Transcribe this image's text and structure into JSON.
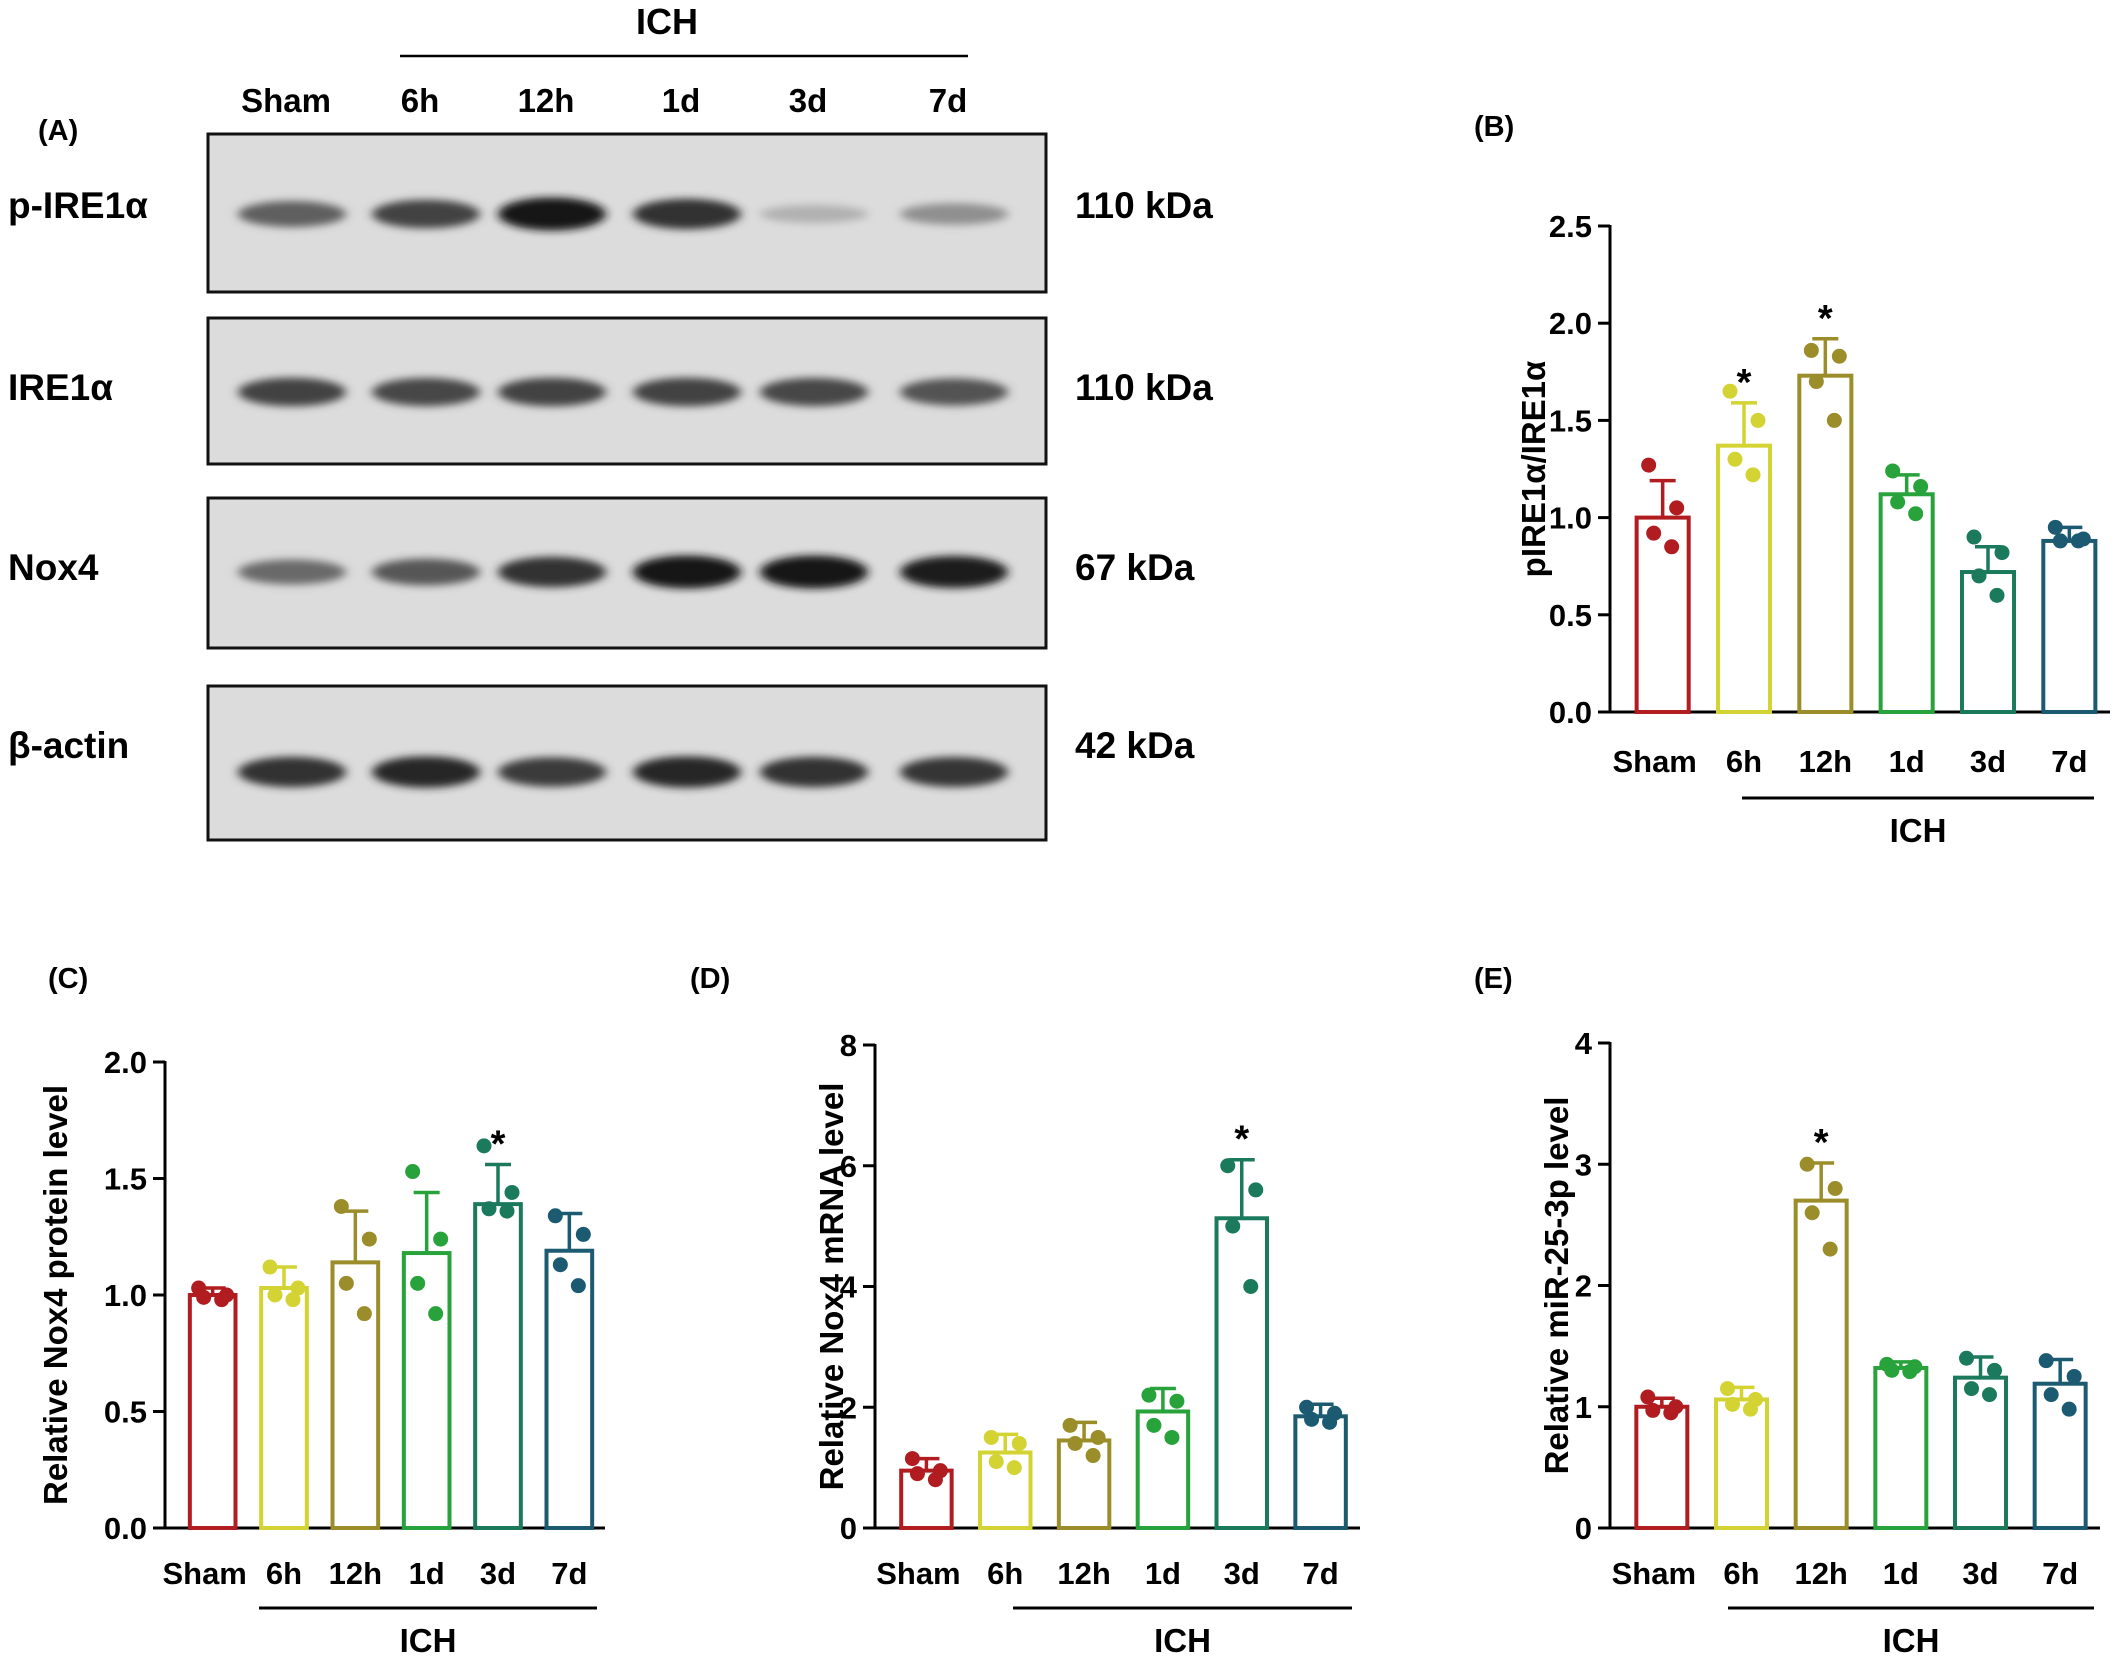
{
  "panel_a": {
    "label": "(A)",
    "group_label": "ICH",
    "lanes": [
      "Sham",
      "6h",
      "12h",
      "1d",
      "3d",
      "7d"
    ],
    "blots": [
      {
        "name": "p-IRE1α",
        "size": "110 kDa",
        "band_intensity": [
          0.55,
          0.7,
          0.95,
          0.8,
          0.12,
          0.3
        ]
      },
      {
        "name": "IRE1α",
        "size": "110 kDa",
        "band_intensity": [
          0.7,
          0.68,
          0.7,
          0.7,
          0.68,
          0.62
        ]
      },
      {
        "name": "Nox4",
        "size": "67 kDa",
        "band_intensity": [
          0.5,
          0.6,
          0.8,
          0.95,
          0.95,
          0.9
        ]
      },
      {
        "name": "β-actin",
        "size": "42 kDa",
        "band_intensity": [
          0.8,
          0.85,
          0.75,
          0.85,
          0.8,
          0.78
        ]
      }
    ]
  },
  "colors": {
    "Sham": "#b01c1f",
    "6h": "#d3d334",
    "12h": "#9a8d2a",
    "1d": "#28a23a",
    "3d": "#1c7a5c",
    "7d": "#1c5a72"
  },
  "chart_data": [
    {
      "id": "B",
      "type": "bar",
      "panel_label": "(B)",
      "categories": [
        "Sham",
        "6h",
        "12h",
        "1d",
        "3d",
        "7d"
      ],
      "group_label": "ICH",
      "values": [
        1.0,
        1.37,
        1.73,
        1.12,
        0.72,
        0.88
      ],
      "sd": [
        0.19,
        0.22,
        0.19,
        0.1,
        0.13,
        0.07
      ],
      "points": [
        [
          1.27,
          1.05,
          0.92,
          0.85
        ],
        [
          1.65,
          1.5,
          1.3,
          1.22
        ],
        [
          1.86,
          1.83,
          1.7,
          1.5
        ],
        [
          1.24,
          1.16,
          1.08,
          1.02
        ],
        [
          0.9,
          0.82,
          0.7,
          0.6
        ],
        [
          0.95,
          0.89,
          0.88,
          0.88
        ]
      ],
      "significant": [
        false,
        true,
        true,
        false,
        false,
        false
      ],
      "ylabel": "pIRE1α/IRE1α",
      "ylim": [
        0,
        2.5
      ],
      "yticks": [
        0.0,
        0.5,
        1.0,
        1.5,
        2.0,
        2.5
      ],
      "ytick_labels": [
        "0.0",
        "0.5",
        "1.0",
        "1.5",
        "2.0",
        "2.5"
      ],
      "significance_label": "*"
    },
    {
      "id": "C",
      "type": "bar",
      "panel_label": "(C)",
      "categories": [
        "Sham",
        "6h",
        "12h",
        "1d",
        "3d",
        "7d"
      ],
      "group_label": "ICH",
      "values": [
        1.0,
        1.03,
        1.14,
        1.18,
        1.39,
        1.19
      ],
      "sd": [
        0.03,
        0.09,
        0.22,
        0.26,
        0.17,
        0.16
      ],
      "points": [
        [
          1.03,
          1.0,
          0.99,
          0.98
        ],
        [
          1.12,
          1.03,
          1.0,
          0.98
        ],
        [
          1.38,
          1.24,
          1.05,
          0.92
        ],
        [
          1.53,
          1.24,
          1.05,
          0.92
        ],
        [
          1.64,
          1.44,
          1.37,
          1.36
        ],
        [
          1.34,
          1.26,
          1.13,
          1.04
        ]
      ],
      "significant": [
        false,
        false,
        false,
        false,
        true,
        false
      ],
      "ylabel": "Relative Nox4 protein level",
      "ylim": [
        0,
        2.0
      ],
      "yticks": [
        0.0,
        0.5,
        1.0,
        1.5,
        2.0
      ],
      "ytick_labels": [
        "0.0",
        "0.5",
        "1.0",
        "1.5",
        "2.0"
      ],
      "significance_label": "*"
    },
    {
      "id": "D",
      "type": "bar",
      "panel_label": "(D)",
      "categories": [
        "Sham",
        "6h",
        "12h",
        "1d",
        "3d",
        "7d"
      ],
      "group_label": "ICH",
      "values": [
        0.95,
        1.25,
        1.45,
        1.93,
        5.13,
        1.85
      ],
      "sd": [
        0.2,
        0.3,
        0.3,
        0.38,
        0.97,
        0.2
      ],
      "points": [
        [
          1.15,
          0.95,
          0.9,
          0.8
        ],
        [
          1.5,
          1.4,
          1.1,
          1.0
        ],
        [
          1.7,
          1.5,
          1.4,
          1.2
        ],
        [
          2.2,
          2.1,
          1.7,
          1.5
        ],
        [
          6.0,
          5.6,
          5.0,
          4.0
        ],
        [
          2.0,
          1.9,
          1.8,
          1.75
        ]
      ],
      "significant": [
        false,
        false,
        false,
        false,
        true,
        false
      ],
      "ylabel": "Relative Nox4 mRNA  level",
      "ylim": [
        0,
        8
      ],
      "yticks": [
        0,
        2,
        4,
        6,
        8
      ],
      "ytick_labels": [
        "0",
        "2",
        "4",
        "6",
        "8"
      ],
      "significance_label": "*"
    },
    {
      "id": "E",
      "type": "bar",
      "panel_label": "(E)",
      "categories": [
        "Sham",
        "6h",
        "12h",
        "1d",
        "3d",
        "7d"
      ],
      "group_label": "ICH",
      "values": [
        1.0,
        1.06,
        2.7,
        1.32,
        1.24,
        1.19
      ],
      "sd": [
        0.07,
        0.1,
        0.31,
        0.05,
        0.17,
        0.2
      ],
      "points": [
        [
          1.08,
          1.0,
          0.97,
          0.95
        ],
        [
          1.15,
          1.06,
          1.02,
          0.98
        ],
        [
          3.0,
          2.8,
          2.6,
          2.3
        ],
        [
          1.35,
          1.33,
          1.3,
          1.29
        ],
        [
          1.4,
          1.3,
          1.15,
          1.1
        ],
        [
          1.38,
          1.25,
          1.1,
          0.98
        ]
      ],
      "significant": [
        false,
        false,
        true,
        false,
        false,
        false
      ],
      "ylabel": "Relative miR-25-3p  level",
      "ylim": [
        0,
        4
      ],
      "yticks": [
        0,
        1,
        2,
        3,
        4
      ],
      "ytick_labels": [
        "0",
        "1",
        "2",
        "3",
        "4"
      ],
      "significance_label": "*"
    }
  ]
}
